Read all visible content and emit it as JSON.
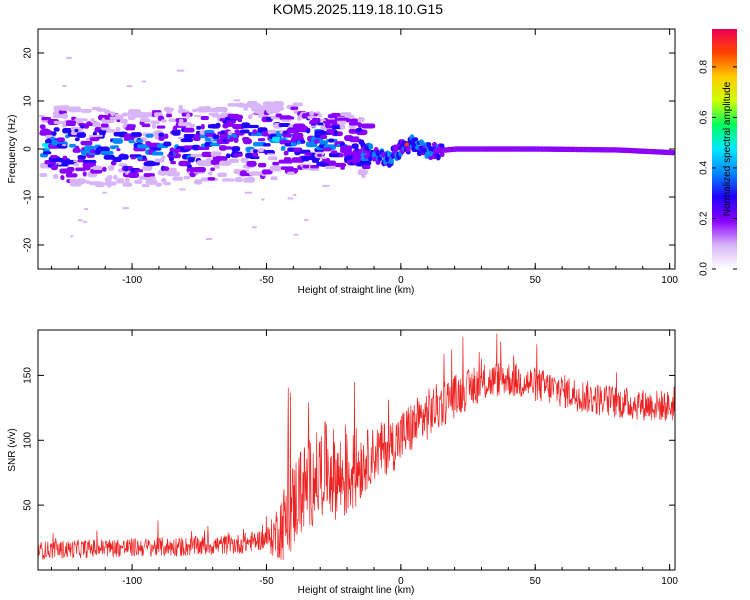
{
  "title": "KOM5.2025.119.18.10.G15",
  "colors": {
    "snr_line": "#ee2222",
    "frame": "#000000",
    "background": "#ffffff"
  },
  "chart_data": [
    {
      "type": "heatmap",
      "xlabel": "Height of straight line (km)",
      "ylabel": "Frequency (Hz)",
      "xlim": [
        -135,
        102
      ],
      "ylim": [
        -25,
        25
      ],
      "xticks": [
        -100,
        -50,
        0,
        50,
        100
      ],
      "yticks": [
        -20,
        -10,
        0,
        10,
        20
      ],
      "colorbar": {
        "label": "Normalized spectral amplitude",
        "range": [
          0,
          0.95
        ],
        "ticks": [
          0.0,
          0.2,
          0.4,
          0.6,
          0.8
        ],
        "colormap": [
          "#ffffff",
          "#d8b4f8",
          "#8a00ff",
          "#2200ff",
          "#0088ff",
          "#00e8ff",
          "#00ff60",
          "#ccff00",
          "#ffcc00",
          "#ff4400",
          "#ee0055"
        ]
      },
      "ridge": [
        {
          "x": -135,
          "f": 0.8
        },
        {
          "x": -100,
          "f": 0.2
        },
        {
          "x": -60,
          "f": 1.5
        },
        {
          "x": -40,
          "f": 2.0
        },
        {
          "x": -20,
          "f": 1.2
        },
        {
          "x": -10,
          "f": -1.5
        },
        {
          "x": -5,
          "f": -2.0
        },
        {
          "x": 0,
          "f": 0.5
        },
        {
          "x": 3,
          "f": 1.0
        },
        {
          "x": 10,
          "f": -0.5
        },
        {
          "x": 20,
          "f": 0.0
        },
        {
          "x": 50,
          "f": 0.0
        },
        {
          "x": 80,
          "f": -0.2
        },
        {
          "x": 102,
          "f": -0.8
        }
      ]
    },
    {
      "type": "line",
      "xlabel": "Height of straight line (km)",
      "ylabel": "SNR (v/v)",
      "xlim": [
        -135,
        102
      ],
      "ylim": [
        0,
        185
      ],
      "xticks": [
        -100,
        -50,
        0,
        50,
        100
      ],
      "yticks": [
        50,
        100,
        150
      ],
      "series": [
        {
          "trend": [
            [
              -135,
              15
            ],
            [
              -110,
              17
            ],
            [
              -80,
              18
            ],
            [
              -60,
              20
            ],
            [
              -48,
              25
            ],
            [
              -42,
              40
            ],
            [
              -38,
              60
            ],
            [
              -32,
              70
            ],
            [
              -28,
              80
            ],
            [
              -22,
              70
            ],
            [
              -17,
              78
            ],
            [
              -13,
              85
            ],
            [
              -8,
              92
            ],
            [
              -2,
              98
            ],
            [
              3,
              108
            ],
            [
              10,
              120
            ],
            [
              18,
              132
            ],
            [
              28,
              142
            ],
            [
              38,
              148
            ],
            [
              48,
              144
            ],
            [
              60,
              138
            ],
            [
              72,
              132
            ],
            [
              85,
              128
            ],
            [
              102,
              126
            ]
          ],
          "noise": [
            [
              -135,
              7
            ],
            [
              -50,
              8
            ],
            [
              -42,
              35
            ],
            [
              -18,
              35
            ],
            [
              -12,
              22
            ],
            [
              10,
              20
            ],
            [
              30,
              14
            ],
            [
              102,
              12
            ]
          ]
        }
      ]
    }
  ]
}
